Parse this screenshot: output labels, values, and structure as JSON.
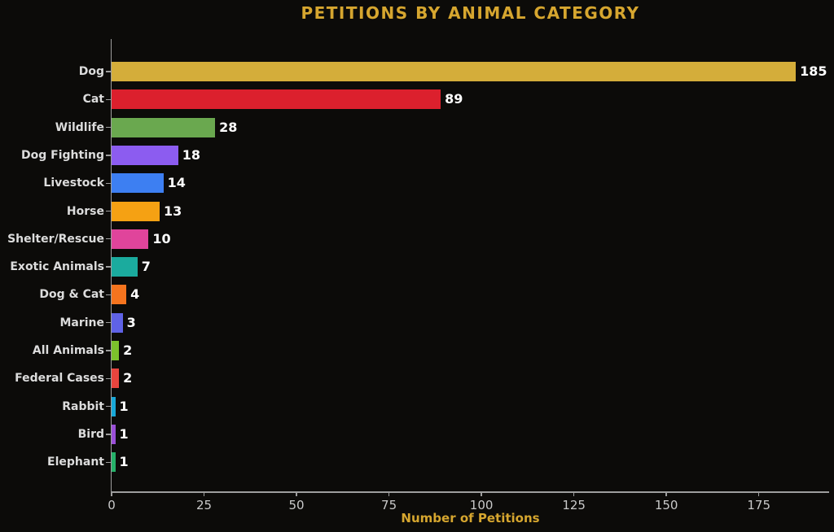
{
  "chart_data": {
    "type": "bar",
    "orientation": "horizontal",
    "title": "PETITIONS BY ANIMAL CATEGORY",
    "xlabel": "Number of Petitions",
    "ylabel": "",
    "categories": [
      "Dog",
      "Cat",
      "Wildlife",
      "Dog Fighting",
      "Livestock",
      "Horse",
      "Shelter/Rescue",
      "Exotic Animals",
      "Dog & Cat",
      "Marine",
      "All Animals",
      "Federal Cases",
      "Rabbit",
      "Bird",
      "Elephant"
    ],
    "values": [
      185,
      89,
      28,
      18,
      14,
      13,
      10,
      7,
      4,
      3,
      2,
      2,
      1,
      1,
      1
    ],
    "value_labels": [
      "185",
      "89",
      "28",
      "18",
      "14",
      "13",
      "10",
      "7",
      "4",
      "3",
      "2",
      "2",
      "1",
      "1",
      "1"
    ],
    "bar_colors": [
      "#d4ad3a",
      "#dc202d",
      "#6aa84f",
      "#8c5cf0",
      "#3d7ff2",
      "#f5a113",
      "#e0449b",
      "#1bab9e",
      "#f5741e",
      "#5f62e6",
      "#7cc12c",
      "#e8453e",
      "#18a8d8",
      "#9b4fd8",
      "#25b169"
    ],
    "xlim": [
      0,
      194
    ],
    "xticks": [
      0,
      25,
      50,
      75,
      100,
      125,
      150,
      175
    ],
    "grid": false,
    "legend": null,
    "value_labels_shown": true
  },
  "style": {
    "background_color": "#0c0b09",
    "title_color": "#d6a62f",
    "xlabel_color": "#d6a62f",
    "category_label_color": "#dcdcdc",
    "value_label_color": "#ffffff",
    "tick_label_color": "#c9c9c9",
    "spine_color": "#9e9e9e"
  }
}
